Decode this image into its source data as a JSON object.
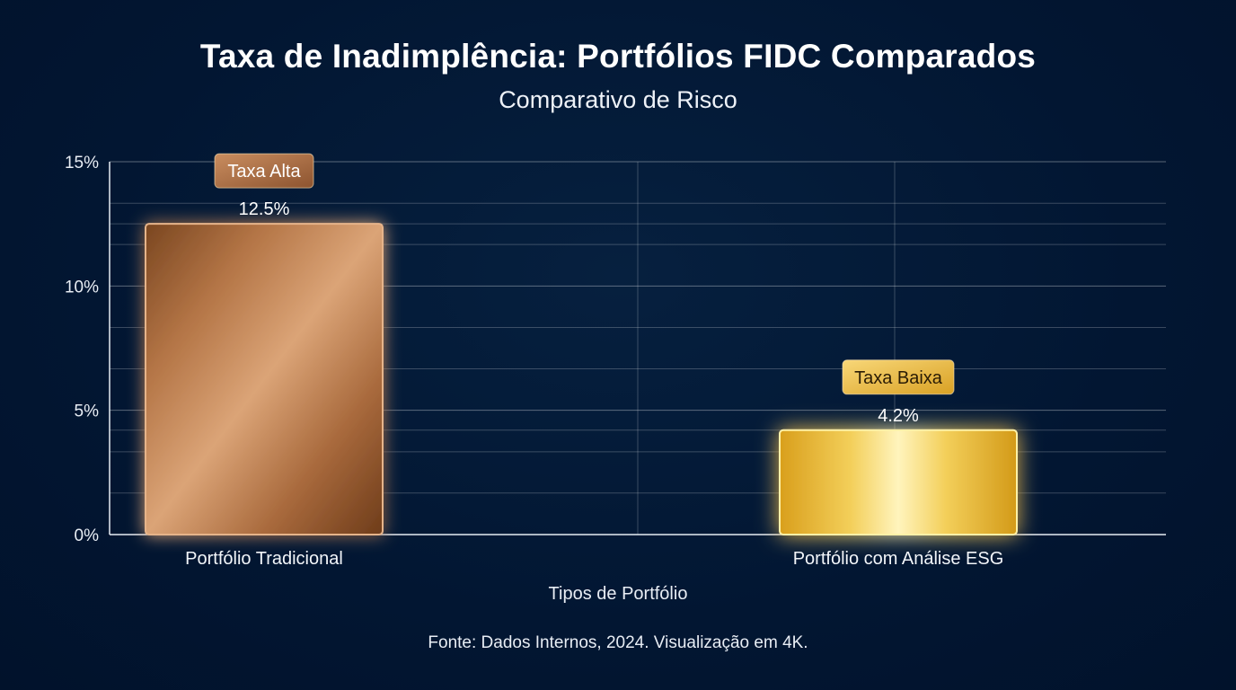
{
  "header": {
    "title": "Taxa de Inadimplência: Portfólios FIDC Comparados",
    "subtitle": "Comparativo de Risco"
  },
  "footer": {
    "source": "Fonte: Dados Internos, 2024. Visualização em 4K."
  },
  "chart_data": {
    "type": "bar",
    "title": "Taxa de Inadimplência: Portfólios FIDC Comparados",
    "subtitle": "Comparativo de Risco",
    "categories": [
      "Portfólio Tradicional",
      "Portfólio com Análise ESG"
    ],
    "values": [
      12.5,
      4.2
    ],
    "value_labels": [
      "12.5%",
      "4.2%"
    ],
    "badges": [
      "Taxa Alta",
      "Taxa Baixa"
    ],
    "xlabel": "Tipos de Portfólio",
    "ylabel": "",
    "ylim": [
      0,
      15
    ],
    "yticks": [
      0,
      5,
      10,
      15
    ],
    "ytick_labels": [
      "0%",
      "5%",
      "10%",
      "15%"
    ],
    "grid": true,
    "colors": {
      "bar_1_dark": "#7a4620",
      "bar_1_light": "#d9a273",
      "bar_2_dark": "#d9a520",
      "bar_2_light": "#fff3b0",
      "badge_1": "#b3754a",
      "badge_2": "#e8b83c",
      "background": "#021733"
    }
  }
}
